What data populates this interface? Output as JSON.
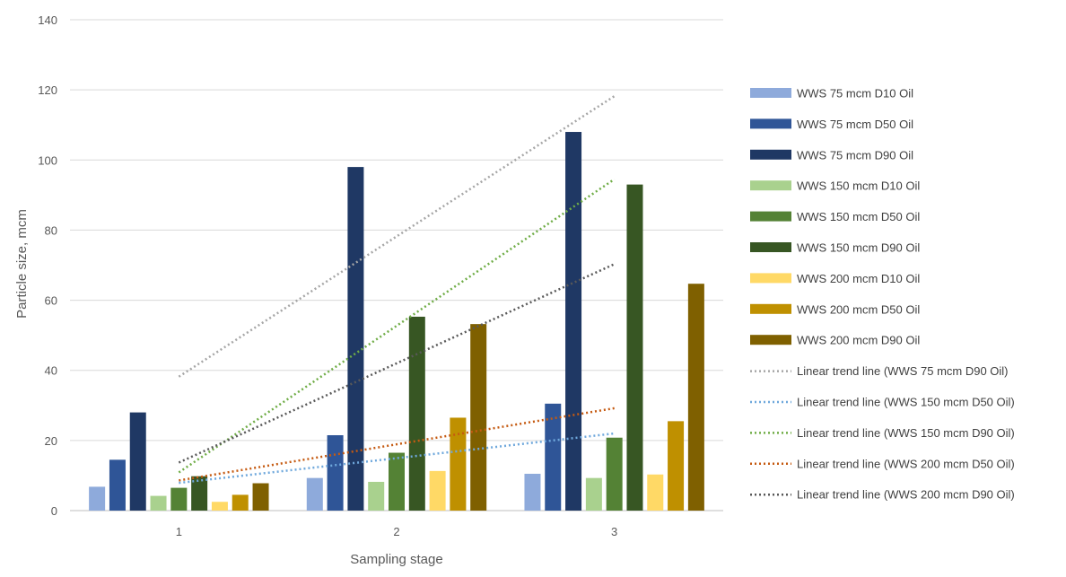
{
  "chart_data": {
    "type": "bar",
    "categories": [
      "1",
      "2",
      "3"
    ],
    "xlabel": "Sampling stage",
    "ylabel": "Particle size, mcm",
    "ylim": [
      0,
      140
    ],
    "yticks": [
      0,
      20,
      40,
      60,
      80,
      100,
      120,
      140
    ],
    "grid": "horizontal",
    "legend_position": "right",
    "series": [
      {
        "name": "WWS 75 mcm D10 Oil",
        "color": "#8eaadb",
        "values": [
          6.8,
          9.3,
          10.5
        ]
      },
      {
        "name": "WWS 75 mcm D50 Oil",
        "color": "#2f5597",
        "values": [
          14.5,
          21.5,
          30.5
        ]
      },
      {
        "name": "WWS 75 mcm D90 Oil",
        "color": "#1f3864",
        "values": [
          28,
          98,
          108
        ]
      },
      {
        "name": "WWS 150 mcm D10 Oil",
        "color": "#a9d18e",
        "values": [
          4.2,
          8.2,
          9.3
        ]
      },
      {
        "name": "WWS 150 mcm D50 Oil",
        "color": "#548235",
        "values": [
          6.5,
          16.5,
          20.8
        ]
      },
      {
        "name": "WWS 150 mcm D90 Oil",
        "color": "#375623",
        "values": [
          9.8,
          55.3,
          93
        ]
      },
      {
        "name": "WWS 200 mcm D10 Oil",
        "color": "#ffd966",
        "values": [
          2.5,
          11.3,
          10.3
        ]
      },
      {
        "name": "WWS 200 mcm D50 Oil",
        "color": "#bf9000",
        "values": [
          4.5,
          26.5,
          25.5
        ]
      },
      {
        "name": "WWS 200 mcm D90 Oil",
        "color": "#7f6000",
        "values": [
          7.8,
          53.2,
          64.7
        ]
      }
    ],
    "trendlines": [
      {
        "name": "Linear trend line (WWS 75 mcm D90 Oil)",
        "color": "#a6a6a6",
        "start": 38.2,
        "end": 118.2
      },
      {
        "name": "Linear trend line (WWS 150 mcm D50 Oil)",
        "color": "#6fa8dc",
        "start": 7.9,
        "end": 22.0
      },
      {
        "name": "Linear trend line (WWS 150 mcm D90 Oil)",
        "color": "#70ad47",
        "start": 10.9,
        "end": 94.5
      },
      {
        "name": "Linear trend line (WWS 200 mcm D50 Oil)",
        "color": "#c55a11",
        "start": 8.6,
        "end": 29.2
      },
      {
        "name": "Linear trend line (WWS 200 mcm D90 Oil)",
        "color": "#595959",
        "start": 13.7,
        "end": 70.3
      }
    ]
  }
}
